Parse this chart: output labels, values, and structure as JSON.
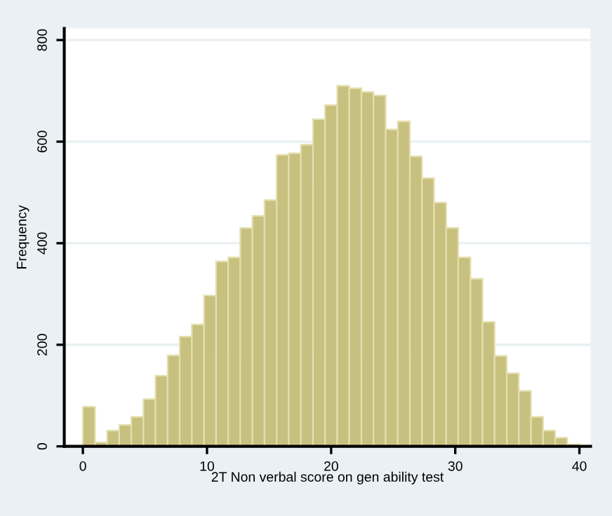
{
  "chart_data": {
    "type": "histogram",
    "xlabel": "2T Non verbal score on gen ability test",
    "ylabel": "Frequency",
    "bins": [
      0,
      0.98,
      1.95,
      2.93,
      3.9,
      4.88,
      5.85,
      6.83,
      7.8,
      8.78,
      9.76,
      10.73,
      11.71,
      12.68,
      13.66,
      14.63,
      15.61,
      16.59,
      17.56,
      18.54,
      19.51,
      20.49,
      21.46,
      22.44,
      23.41,
      24.39,
      25.37,
      26.34,
      27.32,
      28.29,
      29.27,
      30.24,
      31.22,
      32.2,
      33.17,
      34.15,
      35.12,
      36.1,
      37.07,
      38.05,
      39.02,
      40
    ],
    "values": [
      78,
      8,
      31,
      42,
      58,
      93,
      139,
      179,
      216,
      240,
      297,
      364,
      372,
      430,
      454,
      485,
      574,
      577,
      594,
      644,
      672,
      710,
      705,
      698,
      691,
      624,
      640,
      571,
      528,
      480,
      430,
      372,
      330,
      245,
      178,
      144,
      109,
      58,
      31,
      17,
      4
    ],
    "color": "#c8c07e",
    "xlim": [
      -1.5,
      40.9
    ],
    "ylim": [
      0,
      823
    ],
    "xticks": [
      0,
      10,
      20,
      30,
      40
    ],
    "yticks": [
      0,
      200,
      400,
      600,
      800
    ],
    "grid": "y"
  }
}
